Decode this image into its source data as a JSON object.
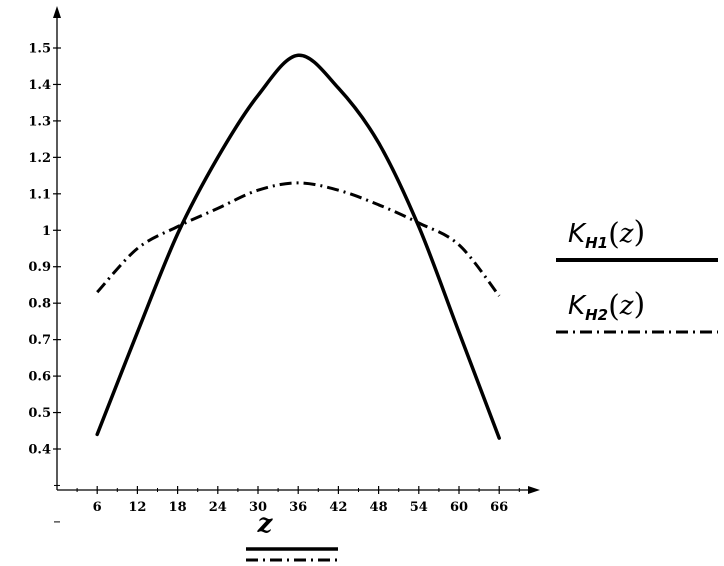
{
  "chart_data": {
    "type": "line",
    "title": "",
    "xlabel": "z",
    "ylabel": "",
    "xlim": [
      0,
      72
    ],
    "ylim": [
      0.1,
      1.55
    ],
    "xticks": [
      "6",
      "12",
      "18",
      "24",
      "30",
      "36",
      "42",
      "48",
      "54",
      "60",
      "66"
    ],
    "yticks": [
      "0.4",
      "0.5",
      "0.6",
      "0.7",
      "0.8",
      "0.9",
      "1",
      "1.1",
      "1.2",
      "1.3",
      "1.4",
      "1.5"
    ],
    "grid": false,
    "legend_position": "right",
    "series": [
      {
        "name": "K_H1(z)",
        "legend": {
          "base": "K",
          "sub": "H1",
          "arg": "z"
        },
        "style": "solid",
        "color": "#000000",
        "x": [
          6,
          12,
          18,
          24,
          30,
          36,
          42,
          48,
          54,
          60,
          66
        ],
        "y": [
          0.44,
          0.72,
          0.99,
          1.2,
          1.37,
          1.48,
          1.39,
          1.24,
          1.01,
          0.72,
          0.43
        ]
      },
      {
        "name": "K_H2(z)",
        "legend": {
          "base": "K",
          "sub": "H2",
          "arg": "z"
        },
        "style": "dash-dot",
        "color": "#000000",
        "x": [
          6,
          12,
          18,
          24,
          30,
          36,
          42,
          48,
          54,
          60,
          66
        ],
        "y": [
          0.83,
          0.95,
          1.01,
          1.06,
          1.11,
          1.13,
          1.11,
          1.07,
          1.02,
          0.96,
          0.82
        ]
      }
    ]
  }
}
